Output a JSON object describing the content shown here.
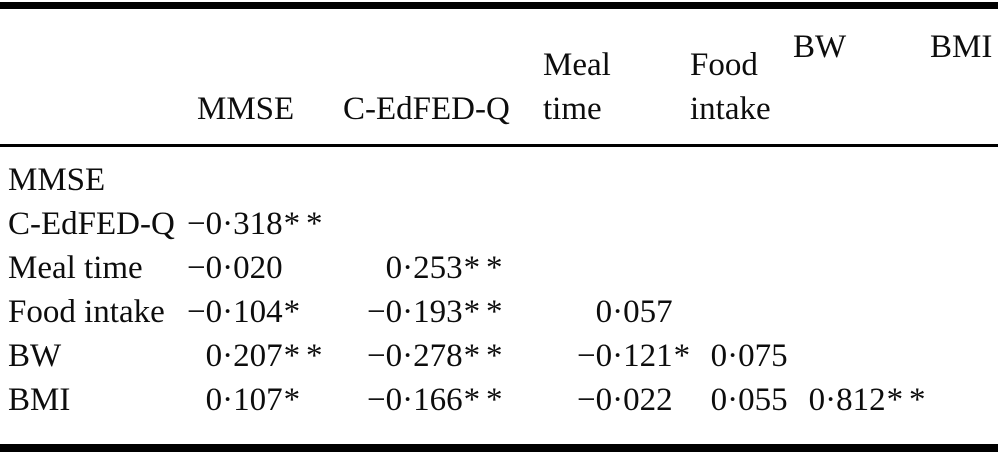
{
  "table": {
    "columns": [
      {
        "label": ""
      },
      {
        "label": "MMSE"
      },
      {
        "label": "C-EdFED-Q"
      },
      {
        "label": "Meal\ntime"
      },
      {
        "label": "Food\nintake"
      },
      {
        "label": "BW"
      },
      {
        "label": "BMI"
      }
    ],
    "rows": [
      {
        "label": "MMSE",
        "values": [
          "",
          "",
          "",
          "",
          "",
          ""
        ]
      },
      {
        "label": "C-EdFED-Q",
        "values": [
          "−0·318**",
          "",
          "",
          "",
          "",
          ""
        ]
      },
      {
        "label": "Meal time",
        "values": [
          "−0·020",
          "0·253**",
          "",
          "",
          "",
          ""
        ]
      },
      {
        "label": "Food intake",
        "values": [
          "−0·104*",
          "−0·193**",
          "0·057",
          "",
          "",
          ""
        ]
      },
      {
        "label": "BW",
        "values": [
          "0·207**",
          "−0·278**",
          "−0·121*",
          "0·075",
          "",
          ""
        ]
      },
      {
        "label": "BMI",
        "values": [
          "0·107*",
          "−0·166**",
          "−0·022",
          "0·055",
          "0·812**",
          ""
        ]
      }
    ]
  },
  "style": {
    "text_color": "#0d0d0d",
    "background_color": "#ffffff",
    "rule_color": "#000000"
  }
}
